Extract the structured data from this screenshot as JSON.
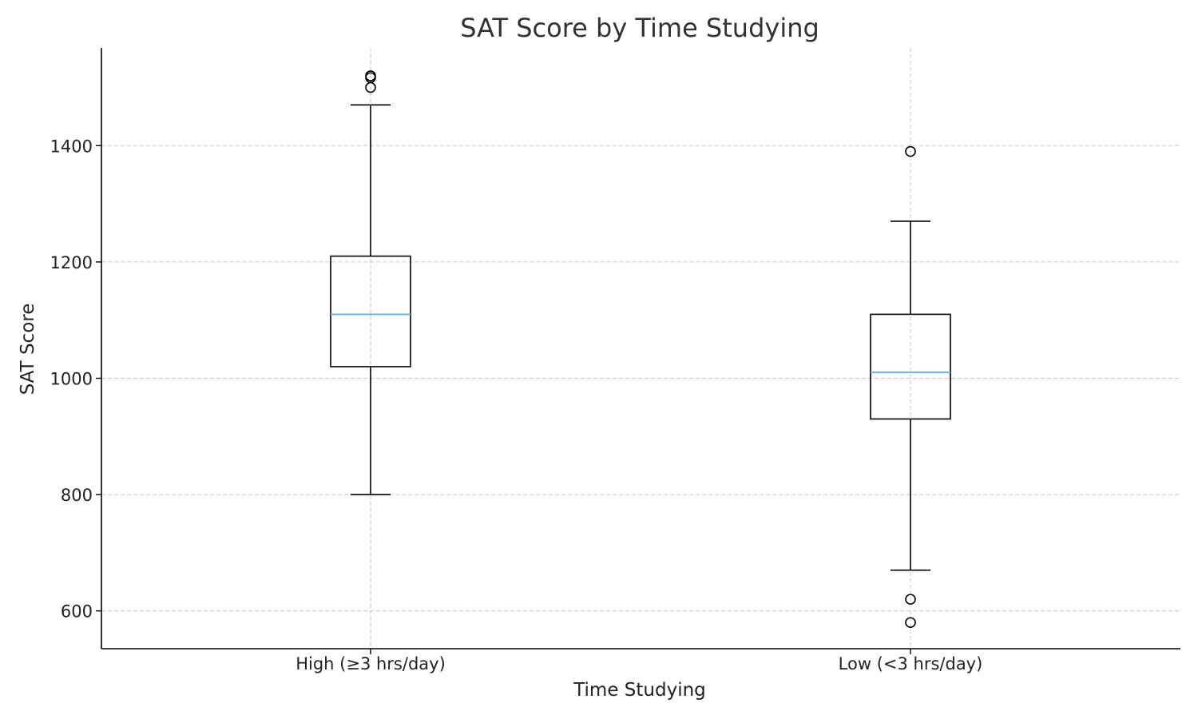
{
  "chart_data": {
    "type": "box",
    "title": "SAT Score by Time Studying",
    "xlabel": "Time Studying",
    "ylabel": "SAT Score",
    "categories": [
      "High (≥3 hrs/day)",
      "Low (<3 hrs/day)"
    ],
    "boxes": [
      {
        "category": "High (≥3 hrs/day)",
        "whisker_low": 800,
        "q1": 1020,
        "median": 1110,
        "q3": 1210,
        "whisker_high": 1470,
        "outliers": [
          1500,
          1517,
          1520
        ]
      },
      {
        "category": "Low (<3 hrs/day)",
        "whisker_low": 670,
        "q1": 930,
        "median": 1010,
        "q3": 1110,
        "whisker_high": 1270,
        "outliers": [
          580,
          620,
          1390
        ]
      }
    ],
    "yticks": [
      600,
      800,
      1000,
      1200,
      1400
    ],
    "ylim": [
      535,
      1568
    ],
    "grid": true,
    "colors": {
      "box": "#000000",
      "median": "#5ab4e6",
      "grid": "#c8c8c8",
      "axis": "#000000",
      "text": "#222222",
      "title": "#333333"
    }
  }
}
